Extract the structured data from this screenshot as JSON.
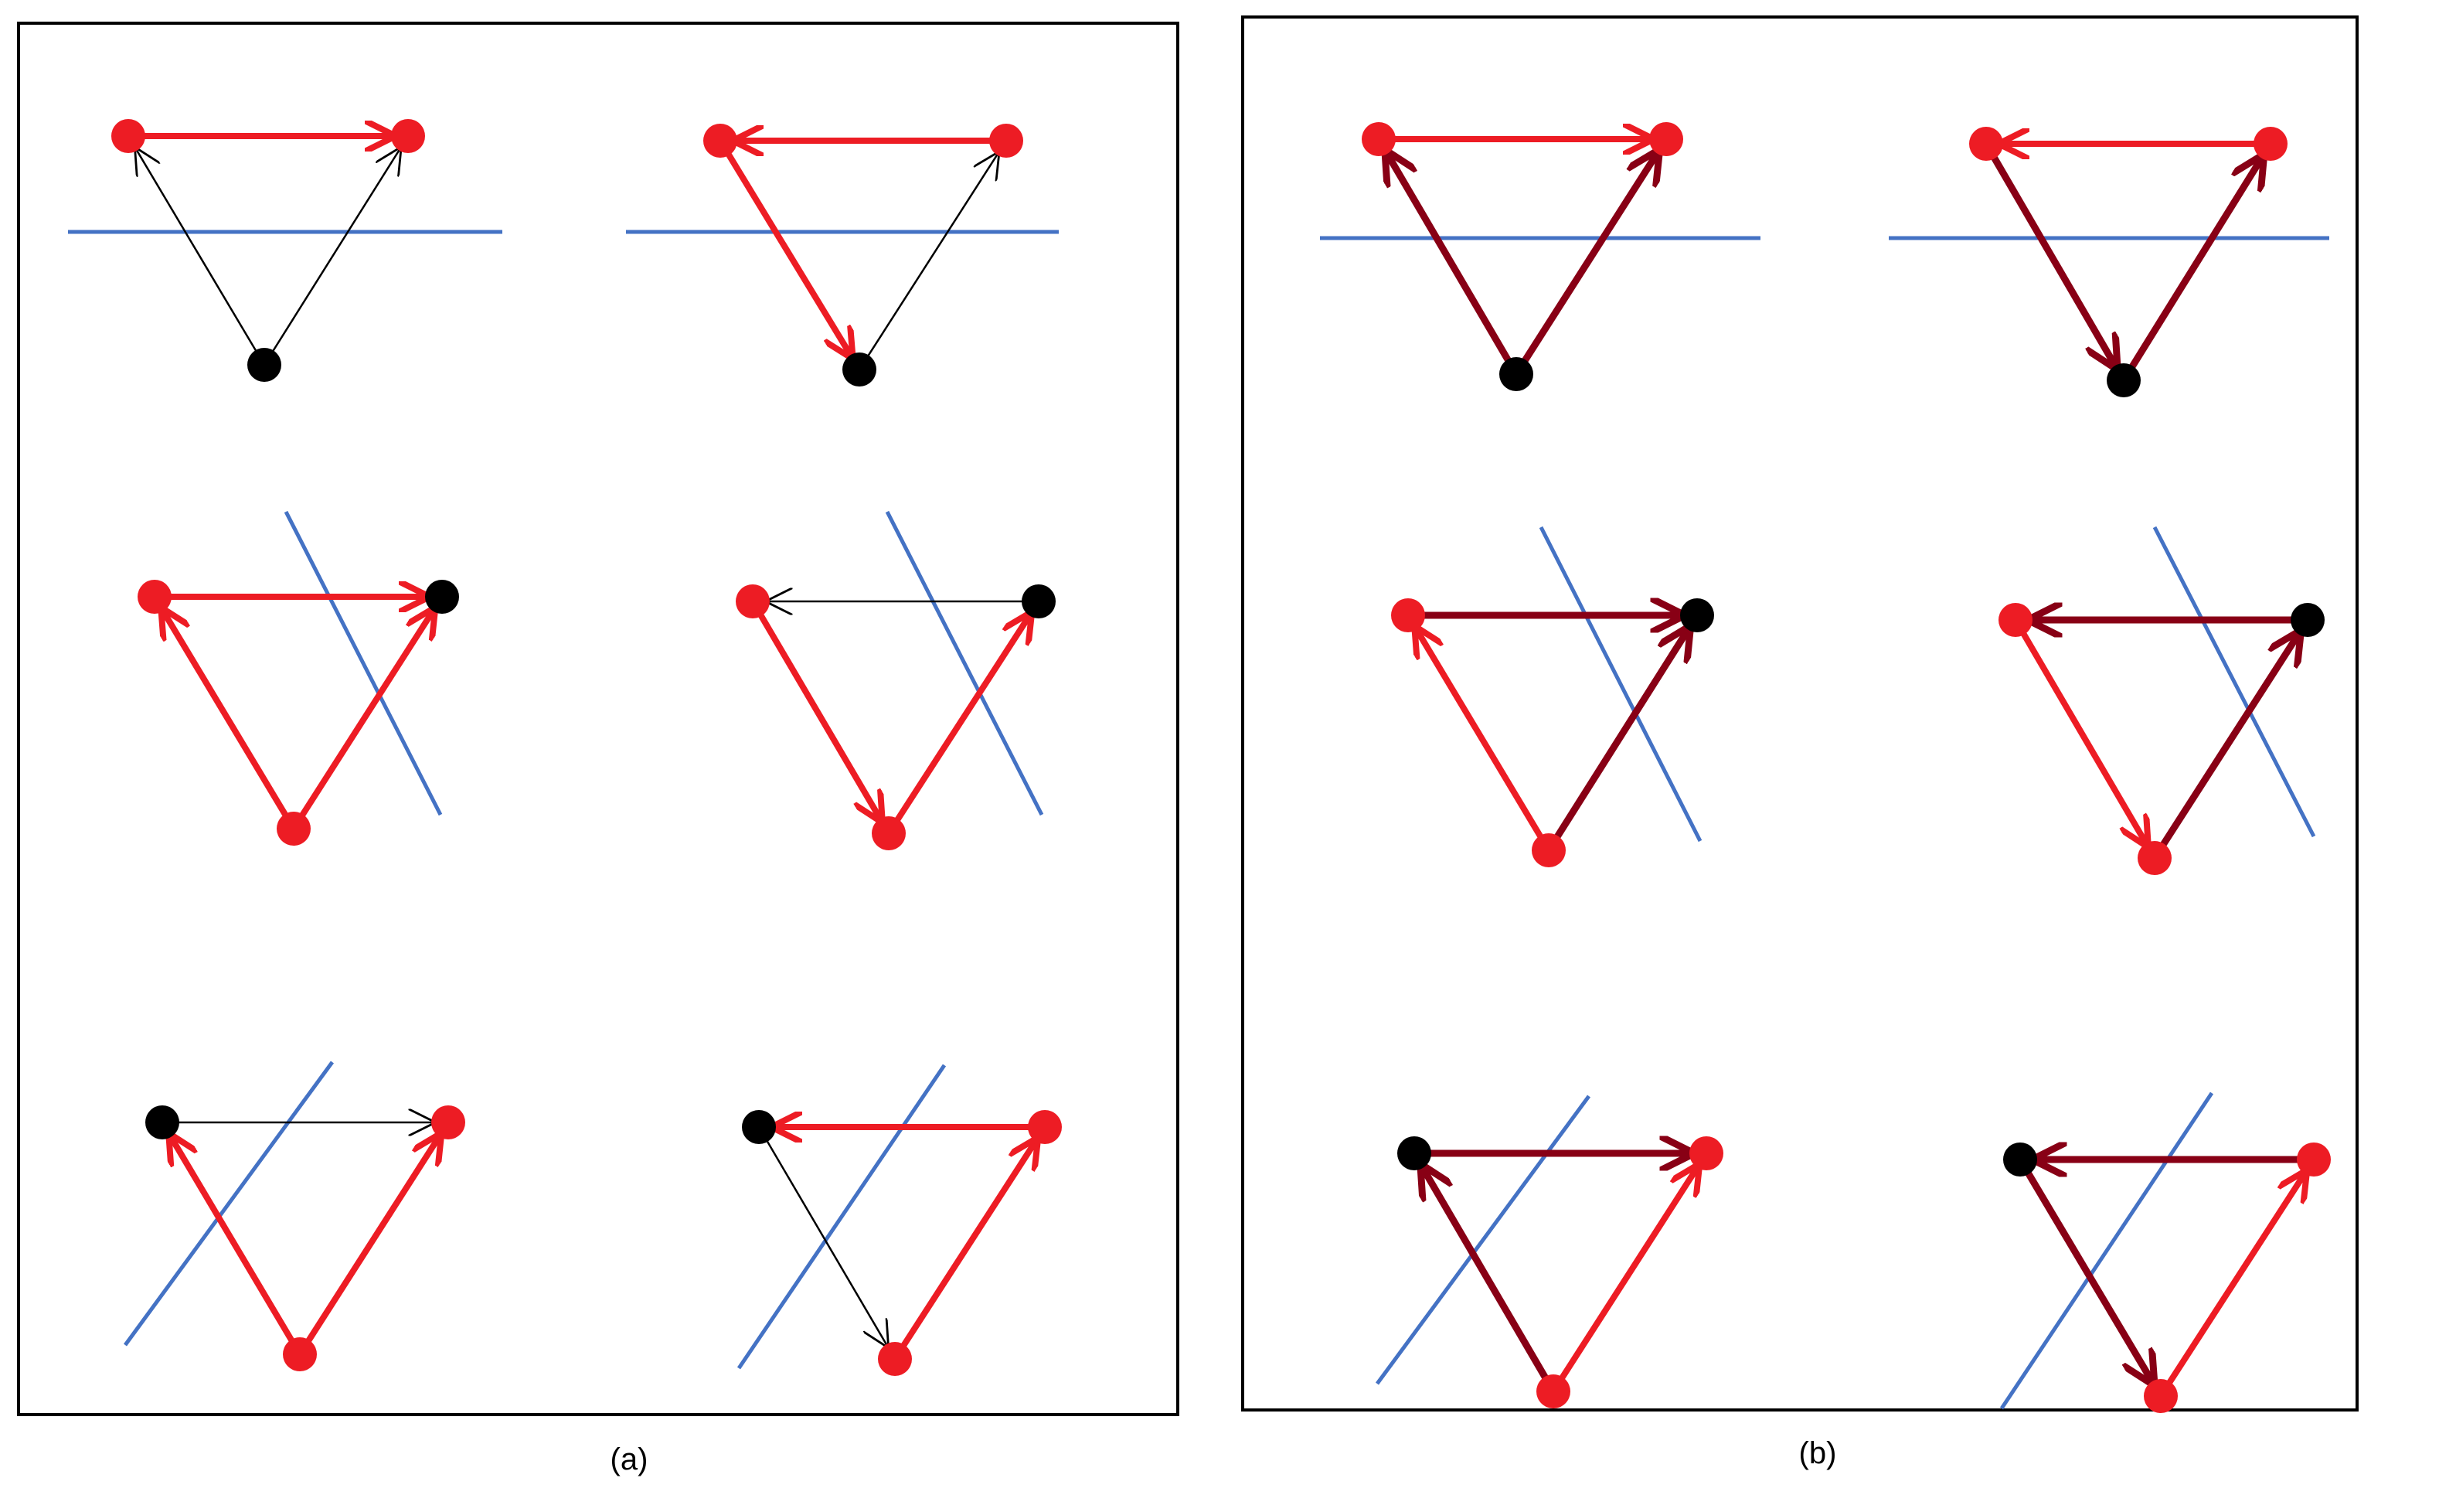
{
  "panels": [
    {
      "id": "a",
      "caption": "(a)"
    },
    {
      "id": "b",
      "caption": "(b)"
    }
  ],
  "colors": {
    "red_node": "#ed1c24",
    "black_node": "#000000",
    "red_edge": "#ed1c24",
    "dark_red_edge": "#880015",
    "thin_edge": "#000000",
    "cut_line": "#4472c4",
    "frame": "#000000"
  },
  "legend": {
    "node_colors": [
      "red",
      "black"
    ],
    "edge_styles": [
      "red",
      "dark-red",
      "thin-black"
    ]
  }
}
